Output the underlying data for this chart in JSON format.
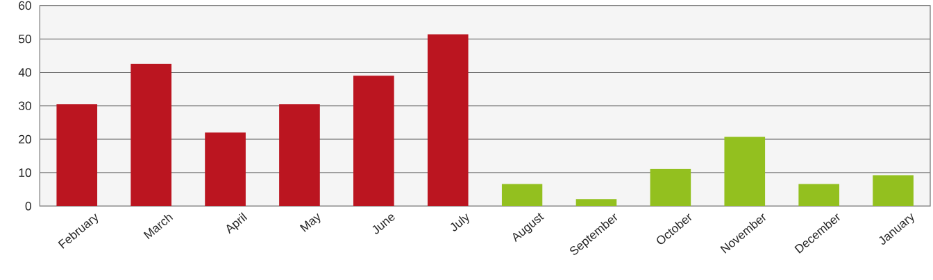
{
  "chart_data": {
    "type": "bar",
    "categories": [
      "February",
      "March",
      "April",
      "May",
      "June",
      "July",
      "August",
      "September",
      "October",
      "November",
      "December",
      "January"
    ],
    "values": [
      30.5,
      42.6,
      22.0,
      30.5,
      39.0,
      51.4,
      6.6,
      2.1,
      11.1,
      20.7,
      6.6,
      9.2
    ],
    "colors": [
      "#bb1520",
      "#bb1520",
      "#bb1520",
      "#bb1520",
      "#bb1520",
      "#bb1520",
      "#93c01f",
      "#93c01f",
      "#93c01f",
      "#93c01f",
      "#93c01f",
      "#93c01f"
    ],
    "ylim": [
      0,
      60
    ],
    "yticks": [
      0,
      10,
      20,
      30,
      40,
      50,
      60
    ],
    "grid": "y"
  }
}
